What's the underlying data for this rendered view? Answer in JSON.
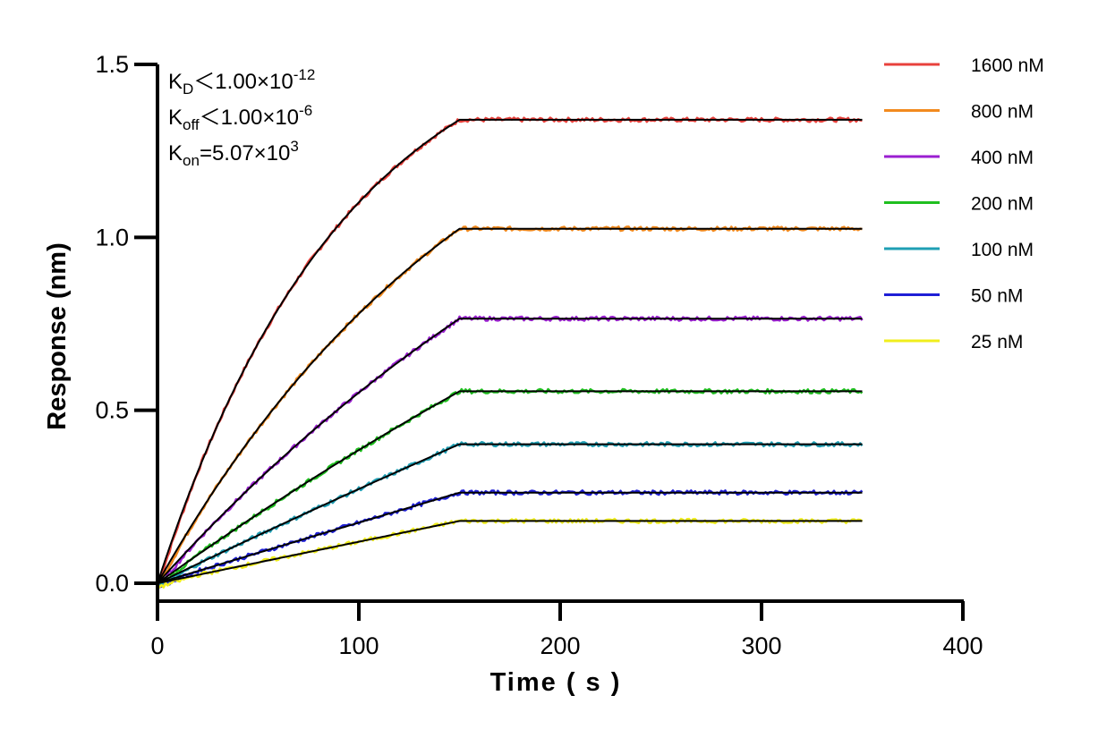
{
  "chart_data": {
    "type": "line",
    "title": "",
    "xlabel": "Time ( s )",
    "ylabel": "Response (nm)",
    "xlim": [
      0,
      400
    ],
    "ylim": [
      -0.05,
      1.5
    ],
    "x_ticks": [
      "0",
      "100",
      "200",
      "300",
      "400"
    ],
    "y_ticks": [
      "0.0",
      "0.5",
      "1.0",
      "1.5"
    ],
    "grid": false,
    "legend_position": "top-right",
    "association_end": 150,
    "dissociation_end": 350,
    "series": [
      {
        "name": "1600 nM",
        "color": "#e8413c",
        "plateau": 1.34,
        "curvature": 1.6
      },
      {
        "name": "800 nM",
        "color": "#f28a1e",
        "plateau": 1.025,
        "curvature": 0.9
      },
      {
        "name": "400 nM",
        "color": "#9b1fd1",
        "plateau": 0.765,
        "curvature": 0.5
      },
      {
        "name": "200 nM",
        "color": "#1fbf1f",
        "plateau": 0.555,
        "curvature": 0.25
      },
      {
        "name": "100 nM",
        "color": "#1f9fb4",
        "plateau": 0.402,
        "curvature": 0.1
      },
      {
        "name": "50 nM",
        "color": "#1f1fd6",
        "plateau": 0.262,
        "curvature": 0.02
      },
      {
        "name": "25 nM",
        "color": "#f0ee1c",
        "plateau": 0.18,
        "curvature": 0.0
      }
    ],
    "fit_color": "#000000",
    "kinetics": [
      {
        "symbol": "K",
        "sub": "D",
        "relation": "＜",
        "value": "1.00×10",
        "exp": "-12"
      },
      {
        "symbol": "K",
        "sub": "off",
        "relation": "＜",
        "value": "1.00×10",
        "exp": "-6"
      },
      {
        "symbol": "K",
        "sub": "on",
        "relation": "=",
        "value": "5.07×10",
        "exp": "3"
      }
    ]
  }
}
